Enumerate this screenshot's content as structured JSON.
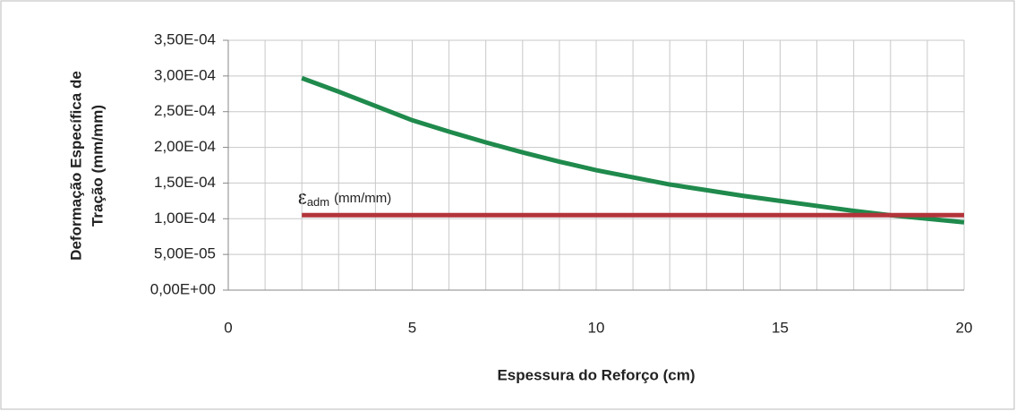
{
  "chart_data": {
    "type": "line",
    "xlabel": "Espessura do Reforço (cm)",
    "ylabel": [
      "Deformação Específica de",
      "Tração (mm/mm)"
    ],
    "annotation": {
      "symbol": "ε",
      "subscript": "adm",
      "text": "(mm/mm)"
    },
    "xlim": [
      0,
      20
    ],
    "xticks": [
      0,
      5,
      10,
      15,
      20
    ],
    "xminorticks": [
      0,
      1,
      2,
      3,
      4,
      5,
      6,
      7,
      8,
      9,
      10,
      11,
      12,
      13,
      14,
      15,
      16,
      17,
      18,
      19,
      20
    ],
    "ylim": [
      0,
      0.00035
    ],
    "yticks": [
      {
        "value": 0,
        "label": "0,00E+00"
      },
      {
        "value": 5e-05,
        "label": "5,00E-05"
      },
      {
        "value": 0.0001,
        "label": "1,00E-04"
      },
      {
        "value": 0.00015,
        "label": "1,50E-04"
      },
      {
        "value": 0.0002,
        "label": "2,00E-04"
      },
      {
        "value": 0.00025,
        "label": "2,50E-04"
      },
      {
        "value": 0.0003,
        "label": "3,00E-04"
      },
      {
        "value": 0.00035,
        "label": "3,50E-04"
      }
    ],
    "grid": true,
    "series": [
      {
        "color": "#1f8a4c",
        "x": [
          2,
          3,
          4,
          5,
          6,
          7,
          8,
          9,
          10,
          11,
          12,
          13,
          14,
          15,
          16,
          17,
          18,
          19,
          20
        ],
        "values": [
          0.000297,
          0.000278,
          0.000258,
          0.000238,
          0.000222,
          0.000207,
          0.000193,
          0.00018,
          0.000168,
          0.000158,
          0.000148,
          0.00014,
          0.000132,
          0.000125,
          0.000118,
          0.000111,
          0.000105,
          0.0001,
          9.5e-05
        ]
      },
      {
        "color": "#b3343a",
        "x": [
          2,
          20
        ],
        "values": [
          0.000105,
          0.000105
        ]
      }
    ]
  }
}
